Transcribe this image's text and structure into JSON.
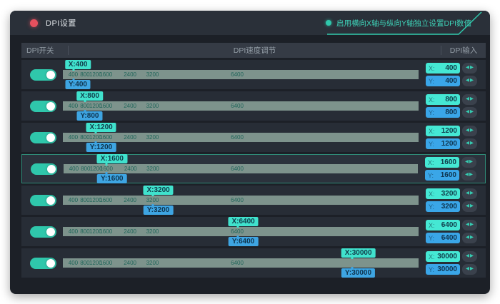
{
  "window": {
    "title": "DPI设置",
    "enable_label": "启用横向X轴与纵向Y轴独立设置DPI数值"
  },
  "header": {
    "switch_col": "DPI开关",
    "slider_col": "DPI速度调节",
    "input_col": "DPI输入"
  },
  "input": {
    "x_prefix": "X:",
    "y_prefix": "Y:"
  },
  "slider": {
    "ticks": [
      {
        "label": "400",
        "pct": 2.9
      },
      {
        "label": "800",
        "pct": 6.2
      },
      {
        "label": "1200",
        "pct": 9.2
      },
      {
        "label": "1600",
        "pct": 12.1
      },
      {
        "label": "2400",
        "pct": 18.9
      },
      {
        "label": "3200",
        "pct": 25.2
      },
      {
        "label": "6400",
        "pct": 49.0
      }
    ]
  },
  "rows": [
    {
      "x": "400",
      "y": "400",
      "x_badge": "X:400",
      "y_badge": "Y:400",
      "pct": 2.9,
      "on": true,
      "selected": false
    },
    {
      "x": "800",
      "y": "800",
      "x_badge": "X:800",
      "y_badge": "Y:800",
      "pct": 6.2,
      "on": true,
      "selected": false
    },
    {
      "x": "1200",
      "y": "1200",
      "x_badge": "X:1200",
      "y_badge": "Y:1200",
      "pct": 9.2,
      "on": true,
      "selected": false
    },
    {
      "x": "1600",
      "y": "1600",
      "x_badge": "X:1600",
      "y_badge": "Y:1600",
      "pct": 12.1,
      "on": true,
      "selected": true
    },
    {
      "x": "3200",
      "y": "3200",
      "x_badge": "X:3200",
      "y_badge": "Y:3200",
      "pct": 25.2,
      "on": true,
      "selected": false
    },
    {
      "x": "6400",
      "y": "6400",
      "x_badge": "X:6400",
      "y_badge": "Y:6400",
      "pct": 49.0,
      "on": true,
      "selected": false
    },
    {
      "x": "30000",
      "y": "30000",
      "x_badge": "X:30000",
      "y_badge": "Y:30000",
      "pct": 81.0,
      "on": true,
      "selected": false
    }
  ],
  "colors": {
    "accent": "#2fc7ab",
    "red_dot": "#e8505e",
    "x_badge": "#40e2cd",
    "y_badge": "#3ea5e2",
    "track": "#7d938c",
    "selected_border": "#2f8a77",
    "window_bg": "#1c2027"
  }
}
